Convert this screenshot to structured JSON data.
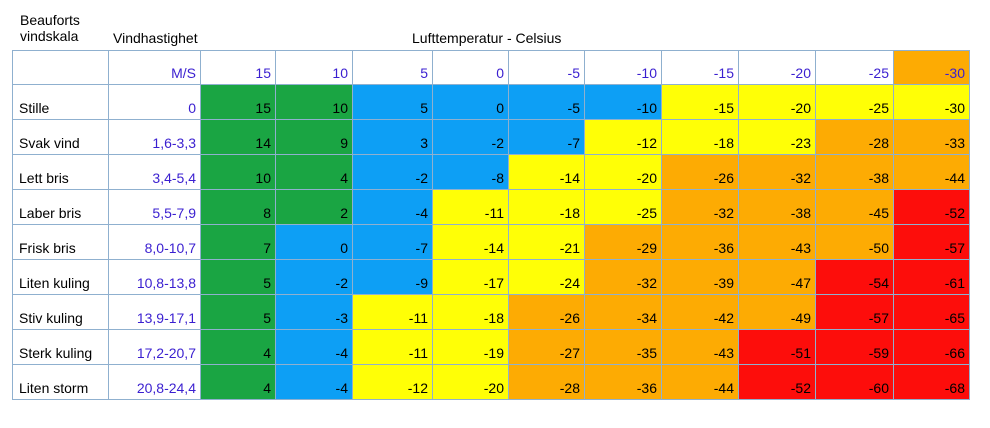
{
  "headers": {
    "scale": "Beauforts vindskala",
    "wind": "Vindhastighet",
    "temperature": "Lufttemperatur - Celsius",
    "unit": "M/S"
  },
  "temperatures": [
    "15",
    "10",
    "5",
    "0",
    "-5",
    "-10",
    "-15",
    "-20",
    "-25",
    "-30"
  ],
  "header_colors": [
    "w",
    "w",
    "w",
    "w",
    "w",
    "w",
    "w",
    "w",
    "w",
    "o"
  ],
  "rows": [
    {
      "label": "Stille",
      "speed": "0",
      "values": [
        "15",
        "10",
        "5",
        "0",
        "-5",
        "-10",
        "-15",
        "-20",
        "-25",
        "-30"
      ],
      "colors": [
        "g",
        "g",
        "b",
        "b",
        "b",
        "b",
        "y",
        "y",
        "y",
        "y"
      ]
    },
    {
      "label": "Svak vind",
      "speed": "1,6-3,3",
      "values": [
        "14",
        "9",
        "3",
        "-2",
        "-7",
        "-12",
        "-18",
        "-23",
        "-28",
        "-33"
      ],
      "colors": [
        "g",
        "g",
        "b",
        "b",
        "b",
        "y",
        "y",
        "y",
        "o",
        "o"
      ]
    },
    {
      "label": "Lett bris",
      "speed": "3,4-5,4",
      "values": [
        "10",
        "4",
        "-2",
        "-8",
        "-14",
        "-20",
        "-26",
        "-32",
        "-38",
        "-44"
      ],
      "colors": [
        "g",
        "g",
        "b",
        "b",
        "y",
        "y",
        "o",
        "o",
        "o",
        "o"
      ]
    },
    {
      "label": "Laber bris",
      "speed": "5,5-7,9",
      "values": [
        "8",
        "2",
        "-4",
        "-11",
        "-18",
        "-25",
        "-32",
        "-38",
        "-45",
        "-52"
      ],
      "colors": [
        "g",
        "g",
        "b",
        "y",
        "y",
        "y",
        "o",
        "o",
        "o",
        "r"
      ]
    },
    {
      "label": "Frisk bris",
      "speed": "8,0-10,7",
      "values": [
        "7",
        "0",
        "-7",
        "-14",
        "-21",
        "-29",
        "-36",
        "-43",
        "-50",
        "-57"
      ],
      "colors": [
        "g",
        "b",
        "b",
        "y",
        "y",
        "o",
        "o",
        "o",
        "o",
        "r"
      ]
    },
    {
      "label": "Liten kuling",
      "speed": "10,8-13,8",
      "values": [
        "5",
        "-2",
        "-9",
        "-17",
        "-24",
        "-32",
        "-39",
        "-47",
        "-54",
        "-61"
      ],
      "colors": [
        "g",
        "b",
        "b",
        "y",
        "y",
        "o",
        "o",
        "o",
        "r",
        "r"
      ]
    },
    {
      "label": "Stiv kuling",
      "speed": "13,9-17,1",
      "values": [
        "5",
        "-3",
        "-11",
        "-18",
        "-26",
        "-34",
        "-42",
        "-49",
        "-57",
        "-65"
      ],
      "colors": [
        "g",
        "b",
        "y",
        "y",
        "o",
        "o",
        "o",
        "o",
        "r",
        "r"
      ]
    },
    {
      "label": "Sterk kuling",
      "speed": "17,2-20,7",
      "values": [
        "4",
        "-4",
        "-11",
        "-19",
        "-27",
        "-35",
        "-43",
        "-51",
        "-59",
        "-66"
      ],
      "colors": [
        "g",
        "b",
        "y",
        "y",
        "o",
        "o",
        "o",
        "r",
        "r",
        "r"
      ]
    },
    {
      "label": "Liten storm",
      "speed": "20,8-24,4",
      "values": [
        "4",
        "-4",
        "-12",
        "-20",
        "-28",
        "-36",
        "-44",
        "-52",
        "-60",
        "-68"
      ],
      "colors": [
        "g",
        "b",
        "y",
        "y",
        "o",
        "o",
        "o",
        "r",
        "r",
        "r"
      ]
    }
  ]
}
